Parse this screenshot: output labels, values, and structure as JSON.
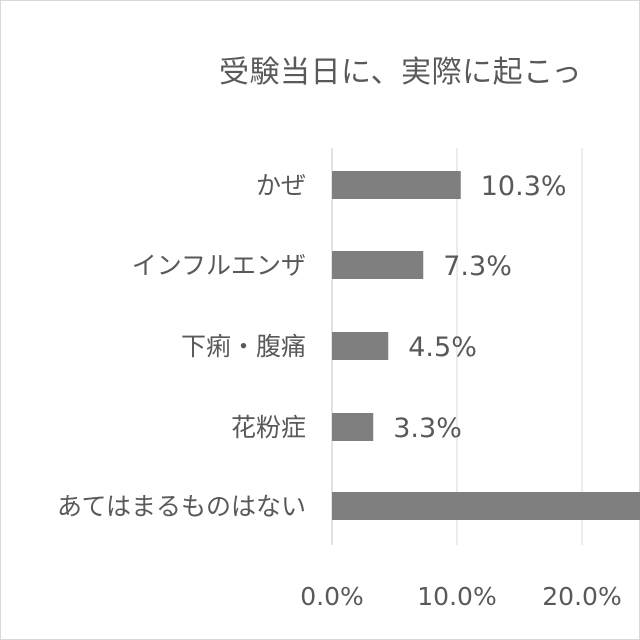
{
  "chart_data": {
    "type": "bar",
    "orientation": "horizontal",
    "title": "受験当日に、実際に起こっ",
    "categories": [
      "かぜ",
      "インフルエンザ",
      "下痢・腹痛",
      "花粉症",
      "あてはまるものはない"
    ],
    "values": [
      10.3,
      7.3,
      4.5,
      3.3,
      null
    ],
    "data_labels": [
      "10.3%",
      "7.3%",
      "4.5%",
      "3.3%",
      ""
    ],
    "x_ticks": [
      "0.0%",
      "10.0%",
      "20.0%"
    ],
    "xlim": [
      0,
      20
    ],
    "grid": true,
    "bar_color": "#7f7f7f",
    "grid_color": "#d9d9d9",
    "text_color": "#595959"
  }
}
